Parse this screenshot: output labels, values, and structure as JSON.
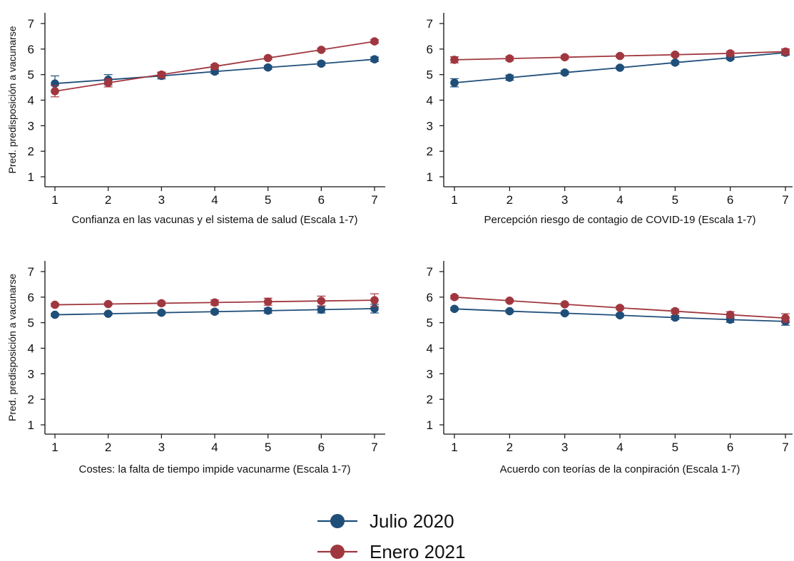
{
  "legend": [
    {
      "name": "Julio 2020",
      "color": "#1f4e79"
    },
    {
      "name": "Enero 2021",
      "color": "#a0373f"
    }
  ],
  "chart_data": [
    {
      "type": "line",
      "x": [
        1,
        2,
        3,
        4,
        5,
        6,
        7
      ],
      "xlabel": "Confianza en las vacunas y el sistema de salud (Escala 1-7)",
      "ylabel": "Pred. predisposición a vacunarse",
      "ylim": [
        1,
        7
      ],
      "grid": false,
      "series": [
        {
          "name": "Julio 2020",
          "values": [
            4.65,
            4.8,
            4.95,
            5.12,
            5.28,
            5.43,
            5.6
          ],
          "err": [
            0.3,
            0.2,
            0.12,
            0.08,
            0.07,
            0.07,
            0.09
          ]
        },
        {
          "name": "Enero 2021",
          "values": [
            4.35,
            4.68,
            5.0,
            5.32,
            5.65,
            5.97,
            6.3
          ],
          "err": [
            0.22,
            0.16,
            0.1,
            0.07,
            0.06,
            0.06,
            0.07
          ]
        }
      ]
    },
    {
      "type": "line",
      "x": [
        1,
        2,
        3,
        4,
        5,
        6,
        7
      ],
      "xlabel": "Percepción riesgo de contagio de COVID-19 (Escala 1-7)",
      "ylabel": "",
      "ylim": [
        1,
        7
      ],
      "grid": false,
      "series": [
        {
          "name": "Julio 2020",
          "values": [
            4.68,
            4.88,
            5.08,
            5.27,
            5.47,
            5.66,
            5.86
          ],
          "err": [
            0.16,
            0.1,
            0.07,
            0.05,
            0.06,
            0.07,
            0.1
          ]
        },
        {
          "name": "Enero 2021",
          "values": [
            5.58,
            5.63,
            5.68,
            5.73,
            5.78,
            5.83,
            5.9
          ],
          "err": [
            0.12,
            0.08,
            0.06,
            0.05,
            0.06,
            0.08,
            0.11
          ]
        }
      ]
    },
    {
      "type": "line",
      "x": [
        1,
        2,
        3,
        4,
        5,
        6,
        7
      ],
      "xlabel": "Costes: la falta de tiempo impide vacunarme (Escala 1-7)",
      "ylabel": "Pred. predisposición a vacunarse",
      "ylim": [
        1,
        7
      ],
      "grid": false,
      "series": [
        {
          "name": "Julio 2020",
          "values": [
            5.31,
            5.35,
            5.39,
            5.43,
            5.47,
            5.51,
            5.55
          ],
          "err": [
            0.05,
            0.05,
            0.06,
            0.07,
            0.1,
            0.13,
            0.17
          ]
        },
        {
          "name": "Enero 2021",
          "values": [
            5.7,
            5.73,
            5.76,
            5.79,
            5.82,
            5.85,
            5.88
          ],
          "err": [
            0.05,
            0.05,
            0.07,
            0.1,
            0.14,
            0.19,
            0.25
          ]
        }
      ]
    },
    {
      "type": "line",
      "x": [
        1,
        2,
        3,
        4,
        5,
        6,
        7
      ],
      "xlabel": "Acuerdo con teorías de la conpiración (Escala 1-7)",
      "ylabel": "",
      "ylim": [
        1,
        7
      ],
      "grid": false,
      "series": [
        {
          "name": "Julio 2020",
          "values": [
            5.54,
            5.45,
            5.37,
            5.29,
            5.2,
            5.12,
            5.05
          ],
          "err": [
            0.05,
            0.05,
            0.05,
            0.06,
            0.08,
            0.11,
            0.15
          ]
        },
        {
          "name": "Enero 2021",
          "values": [
            6.0,
            5.86,
            5.72,
            5.58,
            5.45,
            5.31,
            5.18
          ],
          "err": [
            0.06,
            0.05,
            0.05,
            0.06,
            0.08,
            0.12,
            0.17
          ]
        }
      ]
    }
  ]
}
